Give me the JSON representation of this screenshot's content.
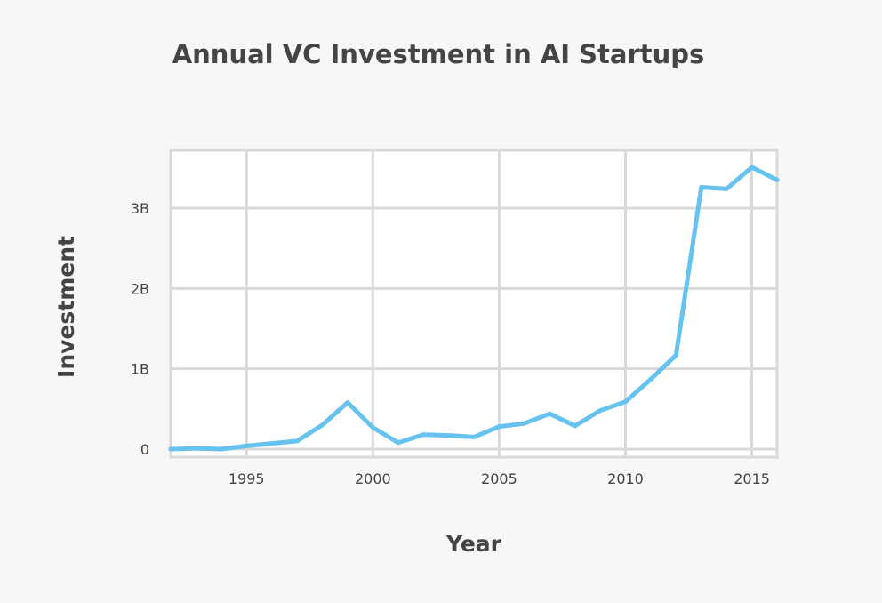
{
  "chart_data": {
    "type": "line",
    "title": "Annual VC Investment in AI Startups",
    "xlabel": "Year",
    "ylabel": "Investment",
    "xlim": [
      1992,
      2016
    ],
    "ylim": [
      -0.1,
      3.72
    ],
    "x_ticks": [
      1995,
      2000,
      2005,
      2010,
      2015
    ],
    "x_tick_labels": [
      "1995",
      "2000",
      "2005",
      "2010",
      "2015"
    ],
    "y_ticks": [
      0,
      1,
      2,
      3
    ],
    "y_tick_labels": [
      "0",
      "1B",
      "2B",
      "3B"
    ],
    "grid": true,
    "legend": "none",
    "series": [
      {
        "color": "#66c2ee",
        "x": [
          1992,
          1993,
          1994,
          1995,
          1996,
          1997,
          1998,
          1999,
          2000,
          2001,
          2002,
          2003,
          2004,
          2005,
          2006,
          2007,
          2008,
          2009,
          2010,
          2011,
          2012,
          2013,
          2014,
          2015,
          2016
        ],
        "values": [
          0.0,
          0.01,
          0.0,
          0.04,
          0.07,
          0.1,
          0.3,
          0.58,
          0.27,
          0.08,
          0.18,
          0.17,
          0.15,
          0.28,
          0.32,
          0.44,
          0.29,
          0.48,
          0.59,
          0.87,
          1.17,
          3.26,
          3.24,
          3.51,
          3.35
        ]
      }
    ]
  },
  "colors": {
    "background": "#f7f7f7",
    "plot_background": "#ffffff",
    "grid": "#d9d9d9",
    "text": "#444444",
    "line": "#66c2ee"
  }
}
